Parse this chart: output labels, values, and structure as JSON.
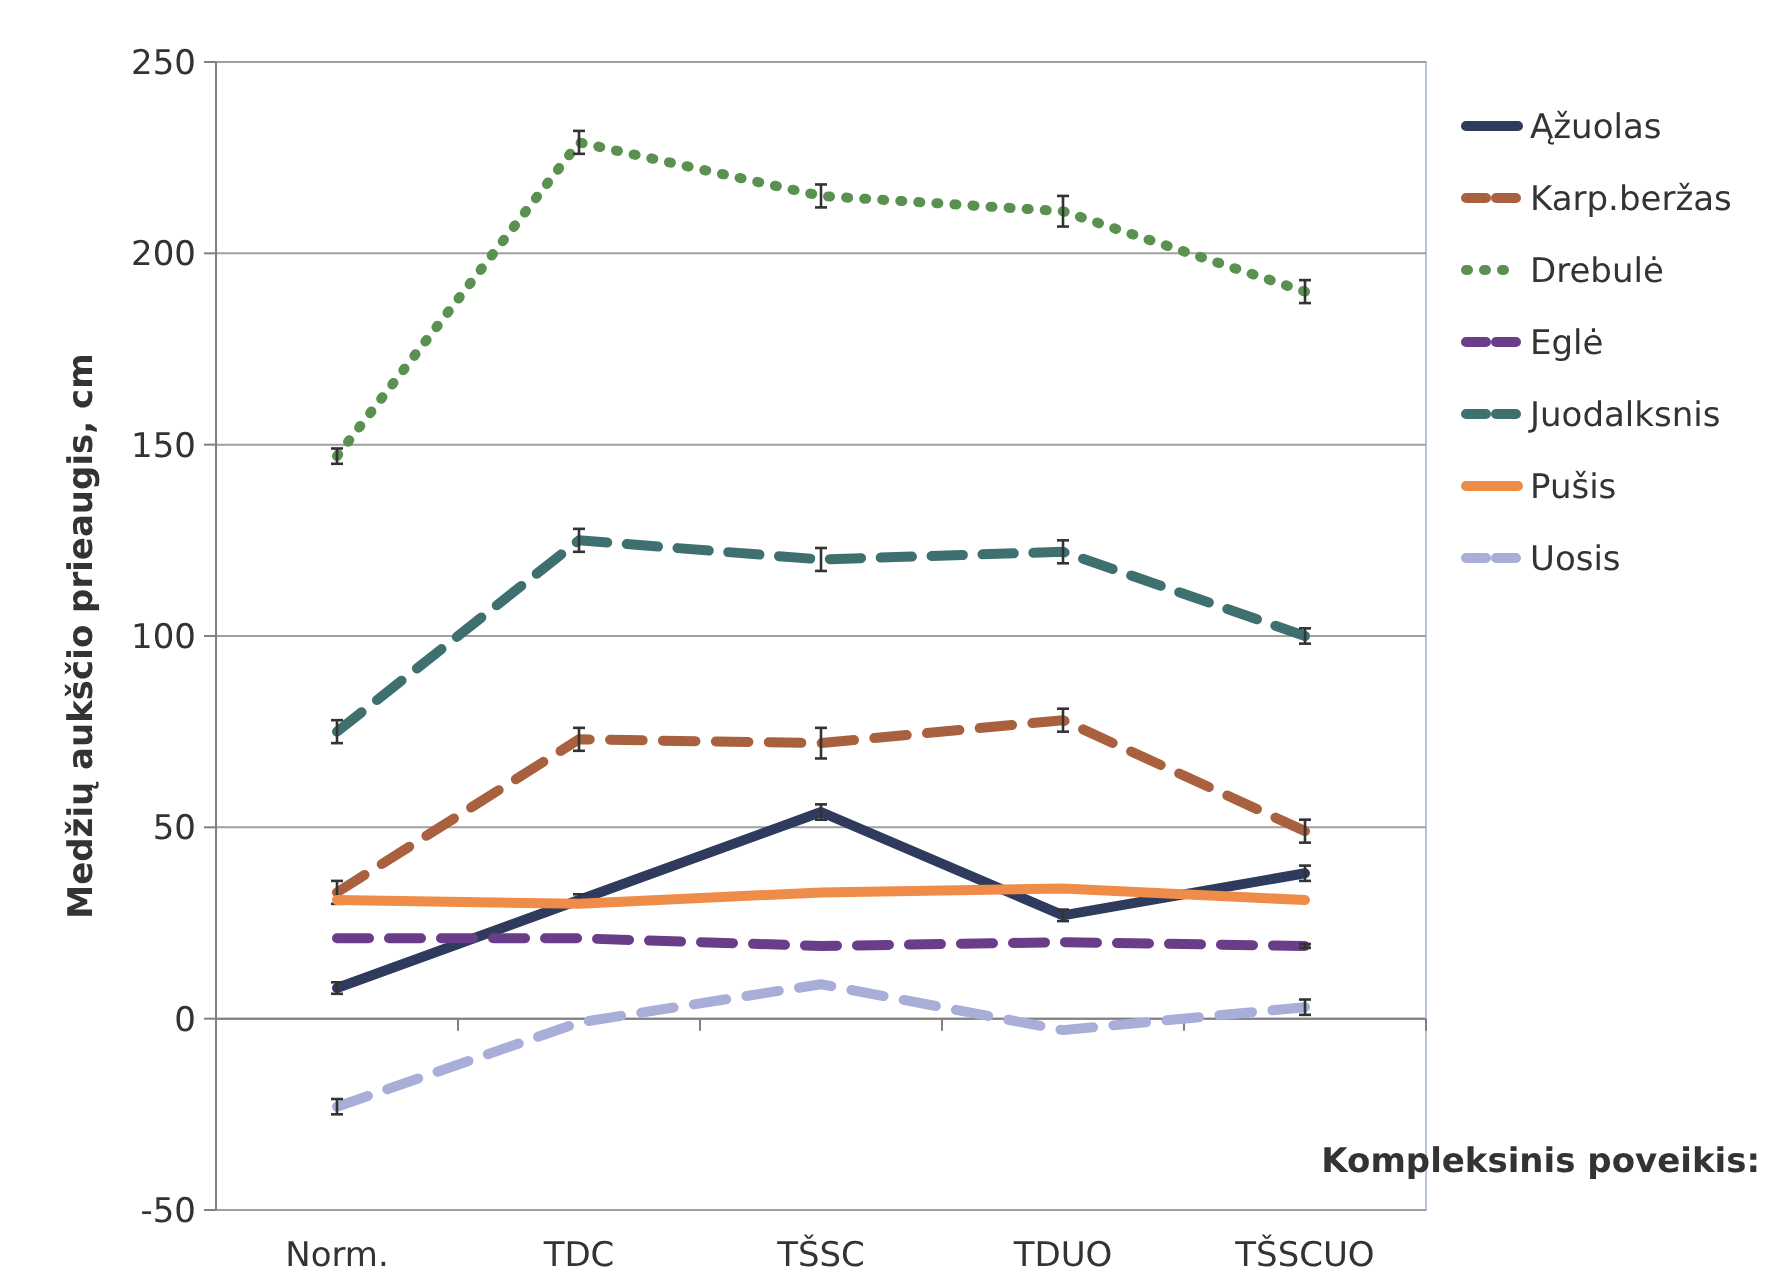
{
  "chart_data": {
    "type": "line",
    "xlabel": "Kompleksinis poveikis:",
    "ylabel": "Medžių aukščio prieaugis, cm",
    "categories": [
      "Norm.",
      "TDC",
      "TŠSC",
      "TDUO",
      "TŠSCUO"
    ],
    "ylim": [
      -50,
      250
    ],
    "yticks": [
      -50,
      0,
      50,
      100,
      150,
      200,
      250
    ],
    "grid": "y",
    "legend": "right",
    "series": [
      {
        "name": "Ąžuolas",
        "color": "#2f3b5c",
        "line_style": "solid",
        "values": [
          8,
          31,
          54,
          27,
          38
        ],
        "errors": [
          1.5,
          1.5,
          2,
          1.5,
          2
        ]
      },
      {
        "name": "Karp.beržas",
        "color": "#a8603e",
        "line_style": "dashed",
        "values": [
          33,
          73,
          72,
          78,
          49
        ],
        "errors": [
          3,
          3,
          4,
          3,
          3
        ]
      },
      {
        "name": "Drebulė",
        "color": "#5a9150",
        "line_style": "dotted",
        "values": [
          147,
          229,
          215,
          211,
          190
        ],
        "errors": [
          2,
          3,
          3,
          4,
          3
        ]
      },
      {
        "name": "Eglė",
        "color": "#6a3d88",
        "line_style": "dashed",
        "values": [
          21,
          21,
          19,
          20,
          19
        ],
        "errors": [
          null,
          null,
          null,
          null,
          0.5
        ]
      },
      {
        "name": "Juodalksnis",
        "color": "#3e7070",
        "line_style": "dashed",
        "values": [
          75,
          125,
          120,
          122,
          100
        ],
        "errors": [
          3,
          3,
          3,
          3,
          2
        ]
      },
      {
        "name": "Pušis",
        "color": "#f08c4a",
        "line_style": "solid",
        "values": [
          31,
          30,
          33,
          34,
          31
        ]
      },
      {
        "name": "Uosis",
        "color": "#a8aed8",
        "line_style": "dashed",
        "values": [
          -23,
          -1,
          9,
          -3,
          3
        ],
        "errors": [
          2,
          null,
          null,
          null,
          2
        ]
      }
    ]
  }
}
